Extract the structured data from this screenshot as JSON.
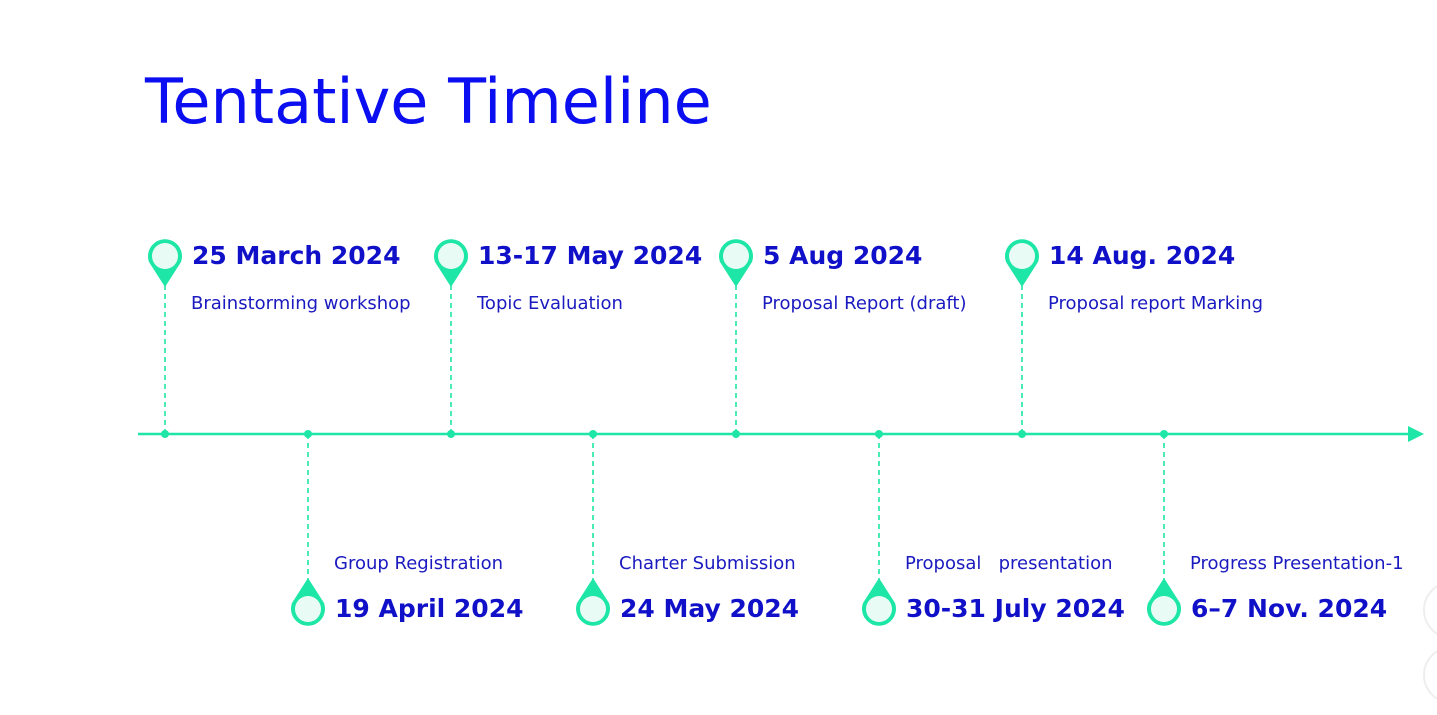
{
  "title": "Tentative Timeline",
  "colors": {
    "title": "#0a0ef0",
    "text": "#1010c8",
    "accent": "#1ee6a6",
    "pin_fill": "#e8fbf5"
  },
  "milestones": [
    {
      "date": "25 March 2024",
      "label": "Brainstorming workshop",
      "side": "top"
    },
    {
      "date": "19 April 2024",
      "label": "Group Registration",
      "side": "bottom"
    },
    {
      "date": "13-17 May 2024",
      "label": "Topic Evaluation",
      "side": "top"
    },
    {
      "date": "24 May 2024",
      "label": "Charter Submission",
      "side": "bottom"
    },
    {
      "date": "5 Aug 2024",
      "label": "Proposal Report (draft)",
      "side": "top"
    },
    {
      "date": "30-31 July 2024",
      "label": "Proposal   presentation",
      "side": "bottom"
    },
    {
      "date": "14 Aug. 2024",
      "label": "Proposal report Marking",
      "side": "top"
    },
    {
      "date": "6–7 Nov. 2024",
      "label": "Progress Presentation-1",
      "side": "bottom"
    }
  ]
}
